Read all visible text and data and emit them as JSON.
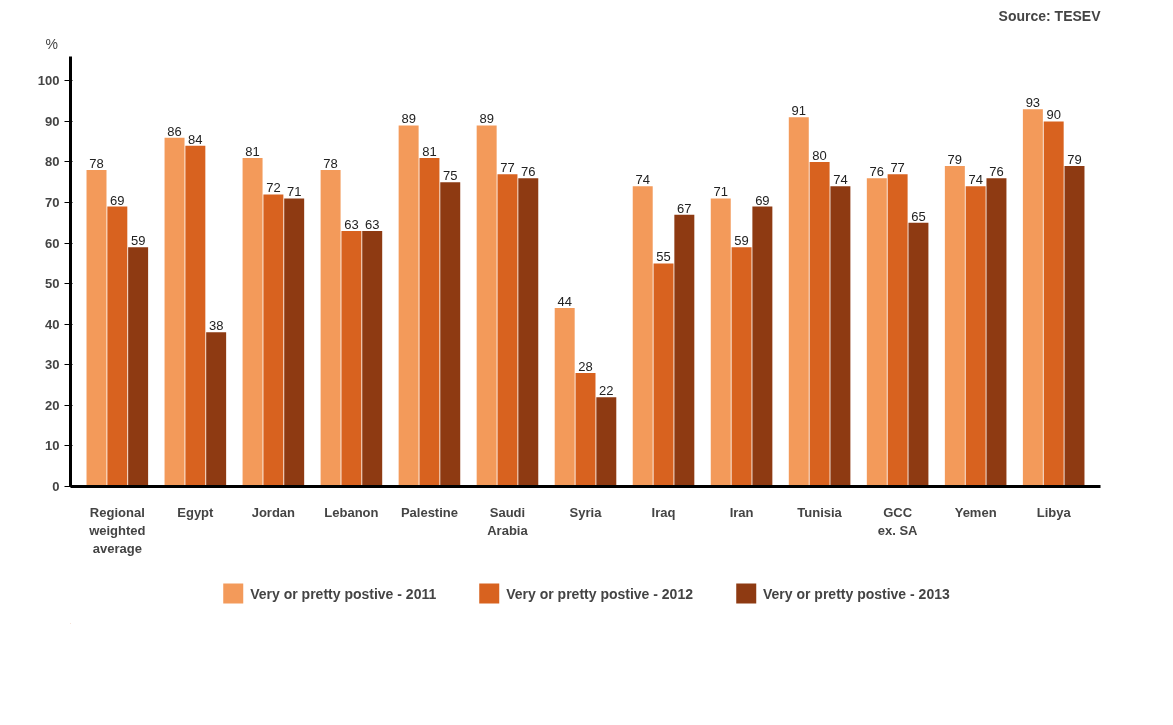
{
  "chart_data": {
    "type": "bar",
    "ylabel": "%",
    "annotations": [
      "Source: TESEV"
    ],
    "categories": [
      "Regional weighted average",
      "Egypt",
      "Jordan",
      "Lebanon",
      "Palestine",
      "Saudi Arabia",
      "Syria",
      "Iraq",
      "Iran",
      "Tunisia",
      "GCC ex. SA",
      "Yemen",
      "Libya"
    ],
    "series": [
      {
        "name": "Very or pretty postive - 2011",
        "color": "#f39a5a",
        "values": [
          78,
          86,
          81,
          78,
          89,
          89,
          44,
          74,
          71,
          91,
          76,
          79,
          93
        ]
      },
      {
        "name": "Very or pretty postive - 2012",
        "color": "#d8621f",
        "values": [
          69,
          84,
          72,
          63,
          81,
          77,
          28,
          55,
          59,
          80,
          77,
          74,
          90
        ]
      },
      {
        "name": "Very or pretty postive - 2013",
        "color": "#8e3a12",
        "values": [
          59,
          38,
          71,
          63,
          75,
          76,
          22,
          67,
          69,
          74,
          65,
          76,
          79
        ]
      }
    ],
    "ylim": [
      0,
      106
    ],
    "yticks": [
      0,
      10,
      20,
      30,
      40,
      50,
      60,
      70,
      80,
      90,
      100
    ],
    "grid": false,
    "legend": "bottom",
    "data_labels": true
  }
}
